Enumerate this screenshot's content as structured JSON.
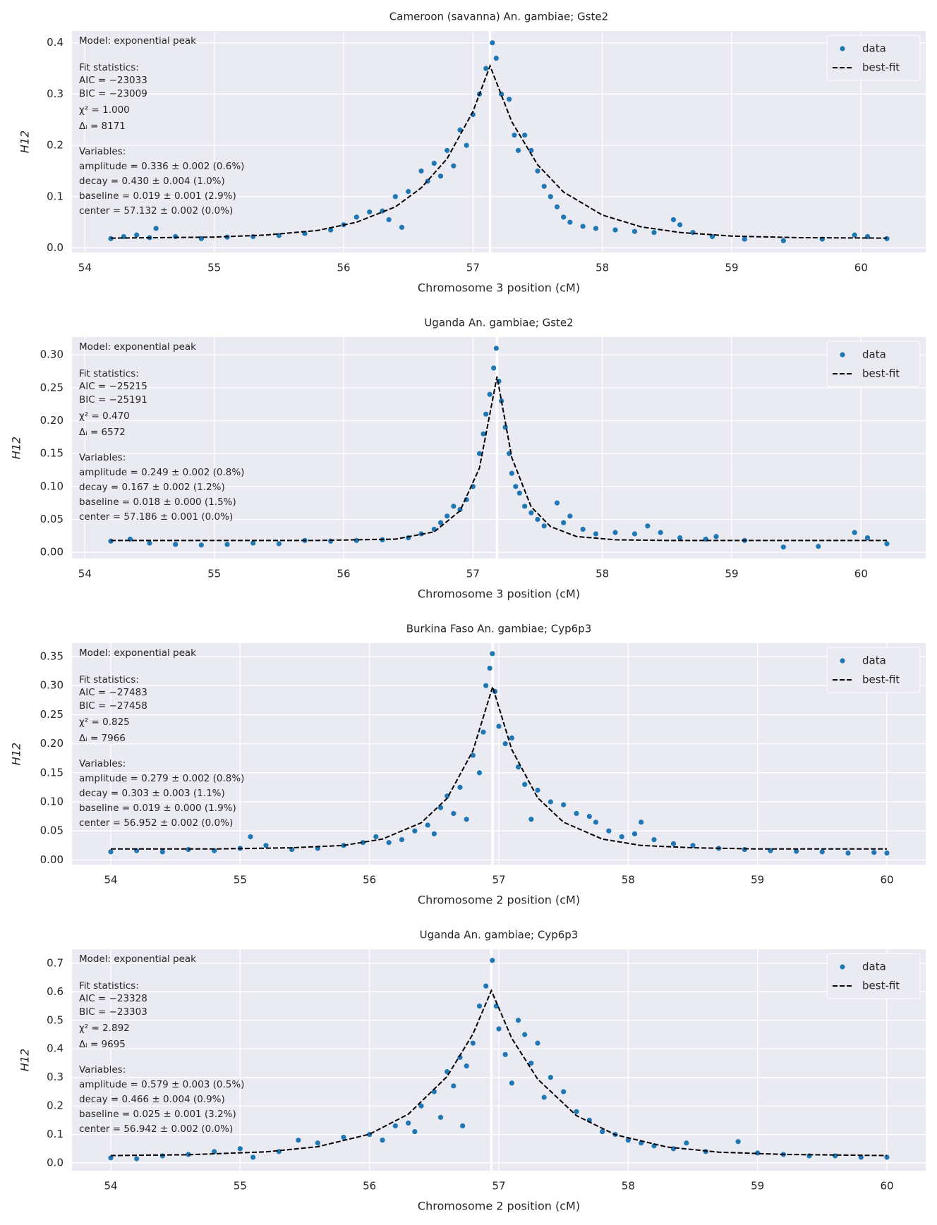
{
  "chart_data": [
    {
      "type": "scatter",
      "title": "Cameroon (savanna) An. gambiae; Gste2",
      "xlabel": "Chromosome 3 position (cM)",
      "ylabel": "H12",
      "xlim": [
        53.9,
        60.5
      ],
      "ylim": [
        -0.009,
        0.423
      ],
      "xticks": [
        54,
        55,
        56,
        57,
        58,
        59,
        60
      ],
      "yticks": [
        {
          "value": 0,
          "label": "0.0"
        },
        0.1,
        0.2,
        0.3,
        0.4
      ],
      "grid": true,
      "legend": "upper right",
      "center_line": 57.132,
      "model": "Model: exponential peak",
      "fit_statistics_heading": "Fit statistics:",
      "fit_statistics": [
        "AIC = −23033",
        "BIC = −23009",
        "χ² = 1.000",
        "Δᵢ = 8171"
      ],
      "variables_heading": "Variables:",
      "variables": [
        "amplitude = 0.336 ± 0.002 (0.6%)",
        "decay = 0.430 ± 0.004 (1.0%)",
        "baseline = 0.019 ± 0.001 (2.9%)",
        "center = 57.132 ± 0.002 (0.0%)"
      ],
      "series": [
        {
          "name": "data",
          "color": "#1f77b4",
          "mode": "markers",
          "x": [
            54.2,
            54.3,
            54.4,
            54.5,
            54.55,
            54.7,
            54.9,
            55.1,
            55.3,
            55.5,
            55.7,
            55.9,
            56.0,
            56.1,
            56.2,
            56.3,
            56.35,
            56.4,
            56.45,
            56.5,
            56.6,
            56.65,
            56.7,
            56.75,
            56.8,
            56.85,
            56.9,
            56.95,
            57.0,
            57.05,
            57.1,
            57.15,
            57.18,
            57.22,
            57.28,
            57.32,
            57.35,
            57.4,
            57.45,
            57.5,
            57.55,
            57.6,
            57.65,
            57.7,
            57.75,
            57.85,
            57.95,
            58.1,
            58.25,
            58.4,
            58.55,
            58.6,
            58.7,
            58.85,
            59.1,
            59.4,
            59.7,
            59.95,
            60.05,
            60.2
          ],
          "values": [
            0.018,
            0.022,
            0.025,
            0.02,
            0.038,
            0.022,
            0.018,
            0.021,
            0.022,
            0.024,
            0.028,
            0.035,
            0.045,
            0.06,
            0.07,
            0.072,
            0.055,
            0.1,
            0.04,
            0.11,
            0.15,
            0.13,
            0.165,
            0.14,
            0.19,
            0.16,
            0.23,
            0.2,
            0.26,
            0.3,
            0.35,
            0.4,
            0.37,
            0.3,
            0.29,
            0.22,
            0.19,
            0.22,
            0.19,
            0.15,
            0.12,
            0.1,
            0.08,
            0.06,
            0.05,
            0.042,
            0.038,
            0.035,
            0.032,
            0.03,
            0.055,
            0.045,
            0.03,
            0.022,
            0.017,
            0.014,
            0.017,
            0.025,
            0.022,
            0.018
          ]
        },
        {
          "name": "best-fit",
          "color": "#000000",
          "mode": "dashed-line",
          "x": [
            54.2,
            54.6,
            55,
            55.4,
            55.8,
            56.1,
            56.4,
            56.6,
            56.8,
            57,
            57.132,
            57.3,
            57.5,
            57.7,
            58,
            58.3,
            58.6,
            59,
            59.5,
            60.2
          ],
          "values": [
            0.019,
            0.02,
            0.021,
            0.025,
            0.034,
            0.05,
            0.08,
            0.117,
            0.174,
            0.266,
            0.355,
            0.246,
            0.162,
            0.109,
            0.064,
            0.041,
            0.03,
            0.023,
            0.02,
            0.019
          ]
        }
      ]
    },
    {
      "type": "scatter",
      "title": "Uganda An. gambiae; Gste2",
      "xlabel": "Chromosome 3 position (cM)",
      "ylabel": "H12",
      "xlim": [
        53.9,
        60.5
      ],
      "ylim": [
        -0.0095,
        0.327
      ],
      "xticks": [
        54,
        55,
        56,
        57,
        58,
        59,
        60
      ],
      "yticks": [
        {
          "value": 0,
          "label": "0.00"
        },
        0.05,
        {
          "value": 0.1,
          "label": "0.10"
        },
        0.15,
        {
          "value": 0.2,
          "label": "0.20"
        },
        0.25,
        {
          "value": 0.3,
          "label": "0.30"
        }
      ],
      "grid": true,
      "legend": "upper right",
      "center_line": 57.186,
      "model": "Model: exponential peak",
      "fit_statistics_heading": "Fit statistics:",
      "fit_statistics": [
        "AIC = −25215",
        "BIC = −25191",
        "χ² = 0.470",
        "Δᵢ = 6572"
      ],
      "variables_heading": "Variables:",
      "variables": [
        "amplitude = 0.249 ± 0.002 (0.8%)",
        "decay = 0.167 ± 0.002 (1.2%)",
        "baseline = 0.018 ± 0.000 (1.5%)",
        "center = 57.186 ± 0.001 (0.0%)"
      ],
      "series": [
        {
          "name": "data",
          "color": "#1f77b4",
          "mode": "markers",
          "x": [
            54.2,
            54.35,
            54.5,
            54.7,
            54.9,
            55.1,
            55.3,
            55.5,
            55.7,
            55.9,
            56.1,
            56.3,
            56.5,
            56.6,
            56.7,
            56.75,
            56.8,
            56.85,
            56.9,
            56.95,
            57.0,
            57.05,
            57.08,
            57.1,
            57.13,
            57.16,
            57.18,
            57.2,
            57.22,
            57.25,
            57.28,
            57.3,
            57.33,
            57.36,
            57.4,
            57.45,
            57.5,
            57.55,
            57.65,
            57.7,
            57.75,
            57.85,
            57.95,
            58.1,
            58.25,
            58.35,
            58.45,
            58.6,
            58.8,
            58.88,
            59.1,
            59.4,
            59.67,
            59.95,
            60.05,
            60.2
          ],
          "values": [
            0.017,
            0.02,
            0.014,
            0.012,
            0.011,
            0.012,
            0.014,
            0.013,
            0.018,
            0.017,
            0.018,
            0.019,
            0.022,
            0.028,
            0.035,
            0.045,
            0.055,
            0.07,
            0.065,
            0.08,
            0.1,
            0.15,
            0.18,
            0.21,
            0.24,
            0.28,
            0.31,
            0.26,
            0.23,
            0.19,
            0.15,
            0.12,
            0.1,
            0.09,
            0.07,
            0.06,
            0.05,
            0.04,
            0.075,
            0.045,
            0.055,
            0.035,
            0.028,
            0.03,
            0.028,
            0.04,
            0.03,
            0.022,
            0.02,
            0.024,
            0.018,
            0.008,
            0.009,
            0.03,
            0.022,
            0.013
          ]
        },
        {
          "name": "best-fit",
          "color": "#000000",
          "mode": "dashed-line",
          "x": [
            54.2,
            55,
            55.8,
            56.4,
            56.7,
            56.9,
            57.05,
            57.186,
            57.3,
            57.45,
            57.6,
            57.8,
            58.1,
            58.5,
            59,
            60.2
          ],
          "values": [
            0.018,
            0.018,
            0.018,
            0.02,
            0.031,
            0.063,
            0.128,
            0.267,
            0.144,
            0.069,
            0.039,
            0.024,
            0.019,
            0.018,
            0.018,
            0.018
          ]
        }
      ]
    },
    {
      "type": "scatter",
      "title": "Burkina Faso An. gambiae; Cyp6p3",
      "xlabel": "Chromosome 2 position (cM)",
      "ylabel": "H12",
      "xlim": [
        53.7,
        60.3
      ],
      "ylim": [
        -0.008,
        0.373
      ],
      "xticks": [
        54,
        55,
        56,
        57,
        58,
        59,
        60
      ],
      "yticks": [
        {
          "value": 0,
          "label": "0.00"
        },
        0.05,
        {
          "value": 0.1,
          "label": "0.10"
        },
        0.15,
        {
          "value": 0.2,
          "label": "0.20"
        },
        0.25,
        {
          "value": 0.3,
          "label": "0.30"
        },
        0.35
      ],
      "grid": true,
      "legend": "upper right",
      "center_line": 56.952,
      "model": "Model: exponential peak",
      "fit_statistics_heading": "Fit statistics:",
      "fit_statistics": [
        "AIC = −27483",
        "BIC = −27458",
        "χ² = 0.825",
        "Δᵢ = 7966"
      ],
      "variables_heading": "Variables:",
      "variables": [
        "amplitude = 0.279 ± 0.002 (0.8%)",
        "decay = 0.303 ± 0.003 (1.1%)",
        "baseline = 0.019 ± 0.000 (1.9%)",
        "center = 56.952 ± 0.002 (0.0%)"
      ],
      "series": [
        {
          "name": "data",
          "color": "#1f77b4",
          "mode": "markers",
          "x": [
            54.0,
            54.2,
            54.4,
            54.6,
            54.8,
            55.0,
            55.08,
            55.2,
            55.4,
            55.6,
            55.8,
            55.95,
            56.05,
            56.15,
            56.25,
            56.35,
            56.45,
            56.5,
            56.55,
            56.6,
            56.65,
            56.7,
            56.75,
            56.8,
            56.85,
            56.88,
            56.9,
            56.93,
            56.95,
            56.97,
            57.0,
            57.05,
            57.1,
            57.15,
            57.2,
            57.25,
            57.3,
            57.4,
            57.5,
            57.6,
            57.7,
            57.75,
            57.85,
            57.95,
            58.05,
            58.1,
            58.2,
            58.35,
            58.5,
            58.7,
            58.9,
            59.1,
            59.3,
            59.5,
            59.7,
            59.9,
            60.0
          ],
          "values": [
            0.014,
            0.016,
            0.014,
            0.018,
            0.016,
            0.02,
            0.04,
            0.025,
            0.018,
            0.02,
            0.025,
            0.03,
            0.04,
            0.03,
            0.035,
            0.05,
            0.06,
            0.045,
            0.09,
            0.11,
            0.08,
            0.125,
            0.07,
            0.18,
            0.15,
            0.22,
            0.3,
            0.33,
            0.355,
            0.29,
            0.23,
            0.2,
            0.21,
            0.16,
            0.13,
            0.07,
            0.12,
            0.1,
            0.095,
            0.08,
            0.075,
            0.065,
            0.05,
            0.04,
            0.045,
            0.065,
            0.035,
            0.028,
            0.025,
            0.02,
            0.018,
            0.016,
            0.015,
            0.014,
            0.012,
            0.013,
            0.012
          ]
        },
        {
          "name": "best-fit",
          "color": "#000000",
          "mode": "dashed-line",
          "x": [
            54,
            54.8,
            55.4,
            55.8,
            56.1,
            56.4,
            56.6,
            56.8,
            56.952,
            57.1,
            57.3,
            57.5,
            57.8,
            58.1,
            58.5,
            59,
            60
          ],
          "values": [
            0.019,
            0.019,
            0.021,
            0.025,
            0.036,
            0.064,
            0.106,
            0.188,
            0.298,
            0.19,
            0.107,
            0.065,
            0.036,
            0.025,
            0.021,
            0.019,
            0.019
          ]
        }
      ]
    },
    {
      "type": "scatter",
      "title": "Uganda An. gambiae; Cyp6p3",
      "xlabel": "Chromosome 2 position (cM)",
      "ylabel": "H12",
      "xlim": [
        53.7,
        60.3
      ],
      "ylim": [
        -0.027,
        0.749
      ],
      "xticks": [
        54,
        55,
        56,
        57,
        58,
        59,
        60
      ],
      "yticks": [
        {
          "value": 0,
          "label": "0.0"
        },
        0.1,
        0.2,
        0.3,
        0.4,
        0.5,
        0.6,
        0.7
      ],
      "grid": true,
      "legend": "upper right",
      "center_line": 56.942,
      "model": "Model: exponential peak",
      "fit_statistics_heading": "Fit statistics:",
      "fit_statistics": [
        "AIC = −23328",
        "BIC = −23303",
        "χ² = 2.892",
        "Δᵢ = 9695"
      ],
      "variables_heading": "Variables:",
      "variables": [
        "amplitude = 0.579 ± 0.003 (0.5%)",
        "decay = 0.466 ± 0.004 (0.9%)",
        "baseline = 0.025 ± 0.001 (3.2%)",
        "center = 56.942 ± 0.002 (0.0%)"
      ],
      "series": [
        {
          "name": "data",
          "color": "#1f77b4",
          "mode": "markers",
          "x": [
            54.0,
            54.2,
            54.4,
            54.6,
            54.8,
            55.0,
            55.1,
            55.3,
            55.45,
            55.6,
            55.8,
            56.0,
            56.1,
            56.2,
            56.3,
            56.35,
            56.4,
            56.5,
            56.55,
            56.6,
            56.65,
            56.7,
            56.72,
            56.75,
            56.8,
            56.85,
            56.9,
            56.95,
            56.98,
            57.0,
            57.05,
            57.1,
            57.15,
            57.2,
            57.25,
            57.3,
            57.35,
            57.4,
            57.5,
            57.6,
            57.7,
            57.8,
            57.9,
            58.0,
            58.1,
            58.2,
            58.35,
            58.45,
            58.6,
            58.85,
            59.0,
            59.2,
            59.4,
            59.6,
            59.8,
            60.0
          ],
          "values": [
            0.018,
            0.015,
            0.025,
            0.03,
            0.04,
            0.05,
            0.02,
            0.04,
            0.08,
            0.07,
            0.09,
            0.1,
            0.08,
            0.13,
            0.14,
            0.11,
            0.2,
            0.25,
            0.16,
            0.32,
            0.27,
            0.37,
            0.13,
            0.34,
            0.42,
            0.55,
            0.62,
            0.71,
            0.55,
            0.47,
            0.38,
            0.28,
            0.5,
            0.45,
            0.35,
            0.42,
            0.23,
            0.3,
            0.25,
            0.18,
            0.15,
            0.11,
            0.1,
            0.08,
            0.07,
            0.06,
            0.05,
            0.07,
            0.04,
            0.075,
            0.035,
            0.03,
            0.025,
            0.025,
            0.02,
            0.02
          ]
        },
        {
          "name": "best-fit",
          "color": "#000000",
          "mode": "dashed-line",
          "x": [
            54,
            54.6,
            55.2,
            55.6,
            56,
            56.3,
            56.6,
            56.8,
            56.942,
            57.1,
            57.3,
            57.6,
            57.9,
            58.3,
            58.7,
            59.2,
            60
          ],
          "values": [
            0.026,
            0.029,
            0.039,
            0.057,
            0.101,
            0.171,
            0.303,
            0.452,
            0.604,
            0.437,
            0.294,
            0.166,
            0.099,
            0.056,
            0.038,
            0.03,
            0.026
          ]
        }
      ]
    }
  ]
}
